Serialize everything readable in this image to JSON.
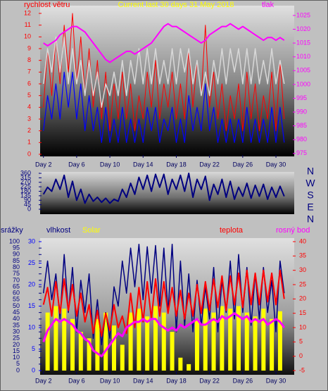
{
  "chart_data": [
    {
      "type": "line",
      "title": "Current last 30 days 31 May 2018",
      "y_label": "rychlost větru",
      "y2_label": "tlak",
      "xlim": [
        1.6,
        32.2
      ],
      "xticks": [
        {
          "value": 2,
          "label": "Day 2"
        },
        {
          "value": 6,
          "label": "Day 6"
        },
        {
          "value": 10,
          "label": "Day 10"
        },
        {
          "value": 14,
          "label": "Day 14"
        },
        {
          "value": 18,
          "label": "Day 18"
        },
        {
          "value": 22,
          "label": "Day 22"
        },
        {
          "value": 26,
          "label": "Day 26"
        },
        {
          "value": 30,
          "label": "Day 30"
        }
      ],
      "ylim": [
        0,
        12.6
      ],
      "yticks": [
        0,
        1,
        2,
        3,
        4,
        5,
        6,
        7,
        8,
        9,
        10,
        11,
        12
      ],
      "y2lim": [
        974.7,
        1028.3
      ],
      "y2ticks": [
        975,
        980,
        985,
        990,
        995,
        1000,
        1005,
        1010,
        1015,
        1020,
        1025
      ],
      "x": [
        2,
        2.5,
        3,
        3.5,
        4,
        4.5,
        5,
        5.5,
        6,
        6.5,
        7,
        7.5,
        8,
        8.5,
        9,
        9.5,
        10,
        10.5,
        11,
        11.5,
        12,
        12.5,
        13,
        13.5,
        14,
        14.5,
        15,
        15.5,
        16,
        16.5,
        17,
        17.5,
        18,
        18.5,
        19,
        19.5,
        20,
        20.5,
        21,
        21.5,
        22,
        22.5,
        23,
        23.5,
        24,
        24.5,
        25,
        25.5,
        26,
        26.5,
        27,
        27.5,
        28,
        28.5,
        29,
        29.5,
        30,
        30.5,
        31
      ],
      "series": [
        {
          "color": "#ff0000",
          "values": [
            4,
            9,
            5,
            10,
            6,
            11,
            7,
            12,
            6,
            10,
            5,
            9,
            4,
            8,
            3,
            7,
            2,
            6,
            3,
            7,
            3,
            6,
            2,
            5,
            3,
            7,
            4,
            8,
            3,
            6,
            4,
            7,
            3,
            6,
            3,
            9,
            4,
            8,
            5,
            11,
            4,
            7,
            3,
            6,
            2,
            5,
            3,
            6,
            2,
            7,
            3,
            6,
            2,
            5,
            3,
            7,
            2,
            8,
            3
          ]
        },
        {
          "color": "#0000ff",
          "values": [
            2,
            5,
            3,
            6,
            3,
            7,
            4,
            7,
            3,
            6,
            2,
            5,
            2,
            4,
            1,
            4,
            1,
            3,
            1,
            4,
            1,
            3,
            1,
            3,
            1,
            4,
            2,
            4,
            1,
            3,
            2,
            4,
            1,
            3,
            1,
            5,
            2,
            4,
            2,
            6,
            2,
            4,
            1,
            3,
            1,
            3,
            1,
            3,
            1,
            4,
            1,
            3,
            1,
            3,
            1,
            4,
            1,
            4,
            1
          ]
        },
        {
          "color": "#d8d8d8",
          "values": [
            6,
            9,
            7,
            10,
            7,
            10,
            6,
            9,
            6,
            8,
            5,
            8,
            5,
            7,
            4,
            6,
            5,
            7,
            5,
            8,
            5,
            8,
            6,
            9,
            6,
            9,
            6,
            9,
            6,
            8,
            6,
            9,
            6,
            9,
            7,
            9,
            6,
            8,
            5,
            7,
            5,
            8,
            6,
            9,
            6,
            9,
            7,
            9,
            6,
            9,
            6,
            9,
            6,
            8,
            6,
            9,
            6,
            8,
            6
          ]
        },
        {
          "color": "#ff00ff",
          "axis": "y2",
          "values": [
            1015,
            1014,
            1015,
            1016,
            1018,
            1019,
            1020,
            1021,
            1021,
            1020,
            1019,
            1017,
            1015,
            1013,
            1011,
            1009,
            1008,
            1009,
            1010,
            1011,
            1012,
            1012,
            1011,
            1012,
            1013,
            1014,
            1015,
            1017,
            1019,
            1021,
            1022,
            1021,
            1021,
            1020,
            1019,
            1018,
            1017,
            1016,
            1015,
            1016,
            1018,
            1019,
            1020,
            1021,
            1021,
            1022,
            1021,
            1020,
            1021,
            1020,
            1019,
            1018,
            1017,
            1016,
            1017,
            1017,
            1016,
            1017,
            1016
          ]
        }
      ]
    },
    {
      "type": "line",
      "direction_labels": [
        "N",
        "W",
        "S",
        "E",
        "N"
      ],
      "xlim": [
        1.6,
        32.2
      ],
      "ylim": [
        0,
        360
      ],
      "yticks": [
        0,
        45,
        90,
        135,
        180,
        225,
        270,
        315,
        360
      ],
      "x": [
        2,
        2.5,
        3,
        3.5,
        4,
        4.5,
        5,
        5.5,
        6,
        6.5,
        7,
        7.5,
        8,
        8.5,
        9,
        9.5,
        10,
        10.5,
        11,
        11.5,
        12,
        12.5,
        13,
        13.5,
        14,
        14.5,
        15,
        15.5,
        16,
        16.5,
        17,
        17.5,
        18,
        18.5,
        19,
        19.5,
        20,
        20.5,
        21,
        21.5,
        22,
        22.5,
        23,
        23.5,
        24,
        24.5,
        25,
        25.5,
        26,
        26.5,
        27,
        27.5,
        28,
        28.5,
        29,
        29.5,
        30,
        30.5,
        31
      ],
      "series": [
        {
          "color": "#000080",
          "values": [
            150,
            220,
            180,
            300,
            200,
            340,
            120,
            280,
            90,
            200,
            60,
            150,
            80,
            120,
            70,
            110,
            60,
            100,
            80,
            200,
            120,
            260,
            150,
            320,
            200,
            340,
            180,
            350,
            220,
            350,
            150,
            300,
            200,
            340,
            180,
            360,
            120,
            300,
            200,
            330,
            90,
            250,
            150,
            300,
            120,
            280,
            100,
            220,
            130,
            260,
            110,
            240,
            130,
            250,
            100,
            220,
            120,
            230,
            130
          ]
        }
      ]
    },
    {
      "type": "line",
      "y_label": "srážky",
      "xlim": [
        1.6,
        32.2
      ],
      "xticks": [
        {
          "value": 2,
          "label": "Day 2"
        },
        {
          "value": 6,
          "label": "Day 6"
        },
        {
          "value": 10,
          "label": "Day 10"
        },
        {
          "value": 14,
          "label": "Day 14"
        },
        {
          "value": 18,
          "label": "Day 18"
        },
        {
          "value": 22,
          "label": "Day 22"
        },
        {
          "value": 26,
          "label": "Day 26"
        },
        {
          "value": 30,
          "label": "Day 30"
        }
      ],
      "ylim": [
        0,
        100
      ],
      "yticks": [
        0,
        5,
        10,
        15,
        20,
        25,
        30,
        35,
        40,
        45,
        50,
        55,
        60,
        65,
        70,
        75,
        80,
        85,
        90,
        95,
        100
      ],
      "y2lim": [
        0,
        30
      ],
      "y2ticks": [
        0,
        5,
        10,
        15,
        20,
        25,
        30
      ],
      "y3lim": [
        -5,
        40
      ],
      "y3ticks": [
        -5,
        0,
        5,
        10,
        15,
        20,
        25,
        30,
        35,
        40
      ],
      "x": [
        2,
        2.5,
        3,
        3.5,
        4,
        4.5,
        5,
        5.5,
        6,
        6.5,
        7,
        7.5,
        8,
        8.5,
        9,
        9.5,
        10,
        10.5,
        11,
        11.5,
        12,
        12.5,
        13,
        13.5,
        14,
        14.5,
        15,
        15.5,
        16,
        16.5,
        17,
        17.5,
        18,
        18.5,
        19,
        19.5,
        20,
        20.5,
        21,
        21.5,
        22,
        22.5,
        23,
        23.5,
        24,
        24.5,
        25,
        25.5,
        26,
        26.5,
        27,
        27.5,
        28,
        28.5,
        29,
        29.5,
        30,
        30.5,
        31
      ],
      "series": [
        {
          "name": "Solar",
          "type": "bar",
          "color": "#ffff00",
          "values": [
            0,
            45,
            0,
            50,
            0,
            48,
            0,
            40,
            0,
            30,
            0,
            25,
            0,
            40,
            0,
            45,
            0,
            35,
            0,
            20,
            0,
            45,
            0,
            48,
            0,
            42,
            0,
            50,
            0,
            45,
            0,
            30,
            0,
            10,
            0,
            5,
            0,
            40,
            0,
            48,
            0,
            45,
            0,
            50,
            0,
            48,
            0,
            50,
            0,
            45,
            0,
            42,
            0,
            48,
            0,
            40,
            0,
            46,
            0
          ]
        },
        {
          "name": "vlhkost",
          "color": "#000080",
          "values": [
            60,
            85,
            55,
            75,
            40,
            90,
            45,
            80,
            30,
            70,
            45,
            75,
            25,
            55,
            20,
            45,
            25,
            65,
            50,
            85,
            60,
            95,
            65,
            98,
            55,
            96,
            60,
            97,
            50,
            95,
            45,
            98,
            30,
            85,
            35,
            75,
            30,
            70,
            35,
            65,
            40,
            80,
            30,
            70,
            45,
            85,
            40,
            90,
            45,
            80,
            35,
            75,
            40,
            80,
            45,
            70,
            30,
            85,
            60
          ]
        },
        {
          "name": "teplota",
          "color": "#ff0000",
          "axis": "y3",
          "values": [
            18,
            24,
            14,
            26,
            15,
            27,
            16,
            25,
            14,
            22,
            12,
            18,
            8,
            16,
            7,
            15,
            9,
            18,
            10,
            14,
            8,
            22,
            10,
            24,
            12,
            26,
            13,
            27,
            14,
            26,
            15,
            24,
            14,
            23,
            13,
            22,
            14,
            25,
            15,
            26,
            16,
            27,
            17,
            28,
            16,
            28,
            18,
            29,
            17,
            30,
            18,
            29,
            18,
            30,
            19,
            29,
            18,
            30,
            20
          ]
        },
        {
          "name": "rosný bod",
          "color": "#ff00ff",
          "axis": "y3",
          "values": [
            5,
            9,
            11,
            13,
            12,
            13,
            12,
            11,
            9,
            8,
            6,
            5,
            2,
            1,
            0,
            2,
            4,
            6,
            8,
            7,
            10,
            11,
            12,
            12,
            13,
            12,
            13,
            13,
            11,
            10,
            9,
            10,
            9,
            11,
            10,
            11,
            12,
            13,
            11,
            11,
            12,
            13,
            12,
            14,
            13,
            14,
            15,
            14,
            13,
            14,
            12,
            13,
            12,
            13,
            11,
            12,
            13,
            12,
            10
          ]
        }
      ]
    }
  ]
}
